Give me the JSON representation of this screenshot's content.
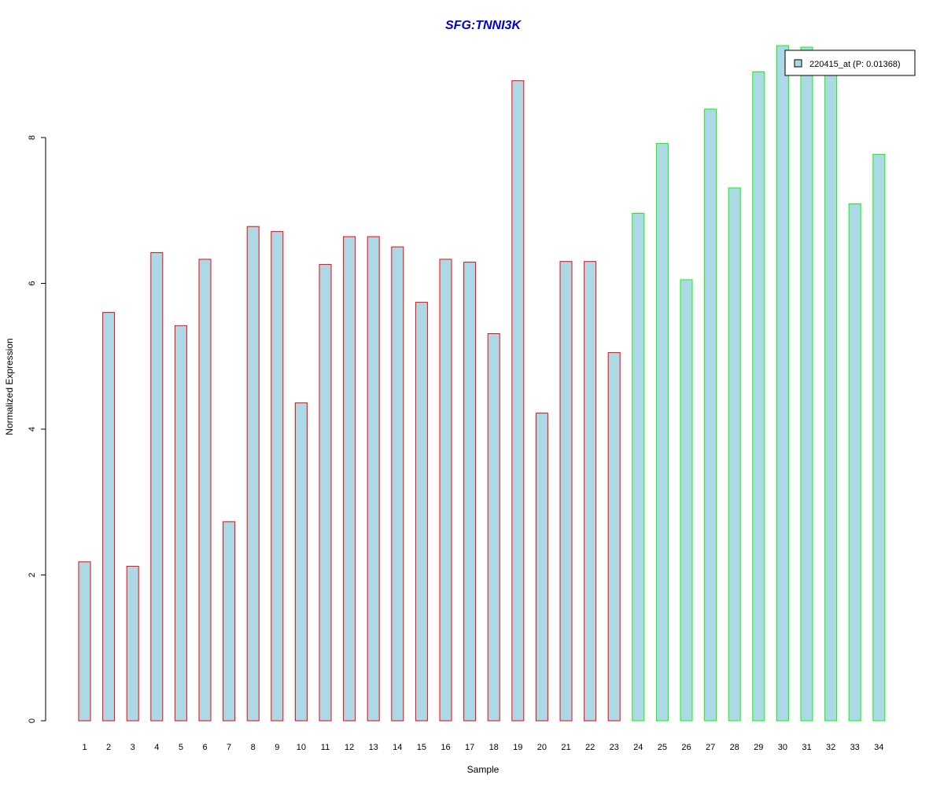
{
  "chart_data": {
    "type": "bar",
    "title": "SFG:TNNI3K",
    "xlabel": "Sample",
    "ylabel": "Normalized Expression",
    "categories": [
      "1",
      "2",
      "3",
      "4",
      "5",
      "6",
      "7",
      "8",
      "9",
      "10",
      "11",
      "12",
      "13",
      "14",
      "15",
      "16",
      "17",
      "18",
      "19",
      "20",
      "21",
      "22",
      "23",
      "24",
      "25",
      "26",
      "27",
      "28",
      "29",
      "30",
      "31",
      "32",
      "33",
      "34"
    ],
    "values": [
      2.18,
      5.6,
      2.12,
      6.42,
      5.42,
      6.33,
      2.73,
      6.78,
      6.71,
      4.36,
      6.26,
      6.64,
      6.64,
      6.5,
      5.74,
      6.33,
      6.29,
      5.31,
      8.78,
      4.22,
      6.3,
      6.3,
      5.05,
      6.96,
      7.92,
      6.05,
      8.39,
      7.31,
      8.9,
      9.26,
      9.24,
      9.05,
      7.09,
      7.77
    ],
    "groups": [
      "1",
      "1",
      "1",
      "1",
      "1",
      "1",
      "1",
      "1",
      "1",
      "1",
      "1",
      "1",
      "1",
      "1",
      "1",
      "1",
      "1",
      "1",
      "1",
      "1",
      "1",
      "1",
      "1",
      "2",
      "2",
      "2",
      "2",
      "2",
      "2",
      "2",
      "2",
      "2",
      "2",
      "2"
    ],
    "yticks": [
      0,
      2,
      4,
      6,
      8
    ],
    "ylim": [
      0,
      9.7
    ],
    "legend": {
      "label": "220415_at (P: 0.01368)",
      "placement": "top-right"
    },
    "colors": {
      "bar_fill": "#add8e6",
      "group1_border": "#ff0000",
      "group2_border": "#00ff00",
      "title": "#0000cd"
    },
    "grid": false
  }
}
